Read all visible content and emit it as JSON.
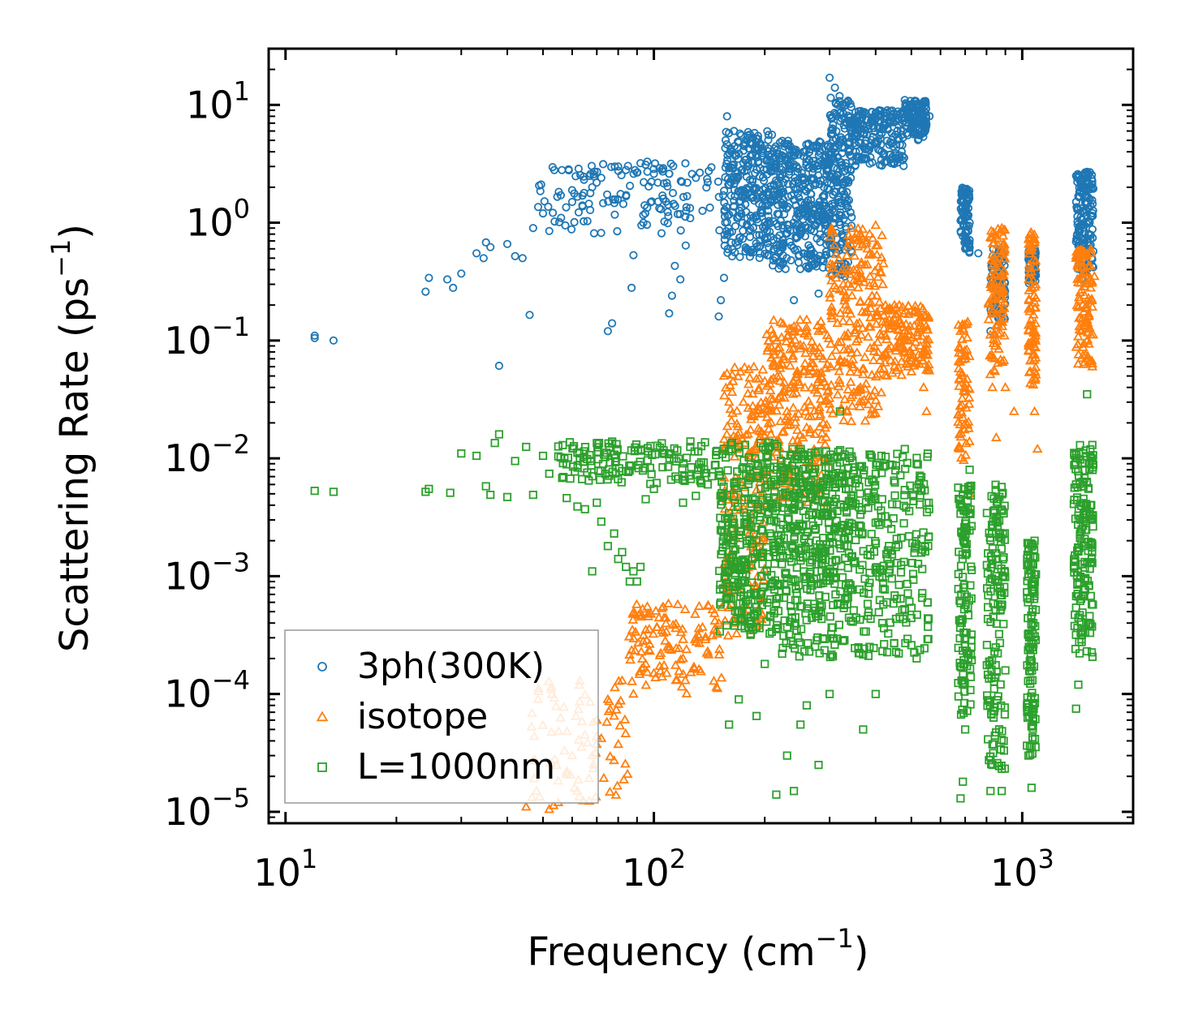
{
  "chart_data": {
    "type": "scatter",
    "title": "",
    "xlabel": {
      "text": "Frequency (cm",
      "sup": "−1",
      "close": ")"
    },
    "ylabel": {
      "text": "Scattering Rate (ps",
      "sup": "−1",
      "close": ")"
    },
    "xscale": "log",
    "yscale": "log",
    "xlim": [
      9.0,
      2000.0
    ],
    "ylim": [
      8e-06,
      30.0
    ],
    "xticks": [
      {
        "base": "10",
        "exp": "1",
        "value": 10
      },
      {
        "base": "10",
        "exp": "2",
        "value": 100
      },
      {
        "base": "10",
        "exp": "3",
        "value": 1000
      }
    ],
    "yticks": [
      {
        "base": "10",
        "exp": "−5",
        "value": 1e-05
      },
      {
        "base": "10",
        "exp": "−4",
        "value": 0.0001
      },
      {
        "base": "10",
        "exp": "−3",
        "value": 0.001
      },
      {
        "base": "10",
        "exp": "−2",
        "value": 0.01
      },
      {
        "base": "10",
        "exp": "−1",
        "value": 0.1
      },
      {
        "base": "10",
        "exp": "0",
        "value": 1
      },
      {
        "base": "10",
        "exp": "1",
        "value": 10
      }
    ],
    "legend_position": "lower-left",
    "series": [
      {
        "name": "3ph(300K)",
        "marker": "circle",
        "color": "#1f77b4",
        "points": [
          [
            12,
            0.11
          ],
          [
            12,
            0.105
          ],
          [
            13.5,
            0.1
          ],
          [
            24,
            0.26
          ],
          [
            24.5,
            0.34
          ],
          [
            27.5,
            0.33
          ],
          [
            28.5,
            0.28
          ],
          [
            30,
            0.37
          ],
          [
            33,
            0.55
          ],
          [
            34.5,
            0.5
          ],
          [
            35,
            0.68
          ],
          [
            36,
            0.62
          ],
          [
            38,
            0.061
          ],
          [
            40,
            0.66
          ],
          [
            42,
            0.52
          ],
          [
            44,
            0.5
          ],
          [
            46,
            0.165
          ],
          [
            47,
            0.9
          ],
          [
            50,
            1.2
          ],
          [
            52,
            0.85
          ],
          [
            56,
            1.1
          ],
          [
            60,
            1.5
          ],
          [
            64,
            1.7
          ],
          [
            68,
            2.0
          ],
          [
            72,
            2.4
          ],
          [
            75,
            0.12
          ],
          [
            77,
            0.14
          ],
          [
            80,
            3.0
          ],
          [
            84,
            2.8
          ],
          [
            87,
            0.28
          ],
          [
            88,
            0.53
          ],
          [
            92,
            3.2
          ],
          [
            96,
            3.3
          ],
          [
            100,
            2.6
          ],
          [
            106,
            2.9
          ],
          [
            110,
            0.17
          ],
          [
            112,
            0.24
          ],
          [
            114,
            0.43
          ],
          [
            118,
            0.33
          ],
          [
            122,
            0.64
          ],
          [
            130,
            2.4
          ],
          [
            140,
            2.2
          ],
          [
            150,
            0.16
          ],
          [
            152,
            0.22
          ],
          [
            155,
            0.34
          ],
          [
            158,
            8.0
          ],
          [
            165,
            6.0
          ],
          [
            180,
            5.5
          ],
          [
            200,
            4.5
          ],
          [
            220,
            4.8
          ],
          [
            240,
            0.22
          ],
          [
            260,
            3.5
          ],
          [
            280,
            0.25
          ],
          [
            300,
            17.0
          ],
          [
            310,
            14.0
          ],
          [
            330,
            0.35
          ],
          [
            350,
            5.5
          ],
          [
            380,
            7.5
          ],
          [
            420,
            8.5
          ],
          [
            480,
            11.0
          ],
          [
            520,
            10.0
          ],
          [
            560,
            8.0
          ],
          [
            690,
            1.8
          ],
          [
            700,
            0.6
          ],
          [
            720,
            1.0
          ],
          [
            760,
            0.55
          ],
          [
            820,
            0.12
          ],
          [
            850,
            0.45
          ],
          [
            880,
            0.55
          ],
          [
            1050,
            0.55
          ],
          [
            1080,
            0.38
          ],
          [
            1400,
            2.5
          ],
          [
            1450,
            0.33
          ],
          [
            1500,
            2.7
          ],
          [
            1550,
            0.43
          ]
        ],
        "bands": [
          {
            "x": [
              48,
              155
            ],
            "ylo": 0.8,
            "yhi": 3.2,
            "n": 140
          },
          {
            "x": [
              155,
              210
            ],
            "ylo": 0.5,
            "yhi": 6.0,
            "n": 280
          },
          {
            "x": [
              210,
              300
            ],
            "ylo": 0.4,
            "yhi": 5.0,
            "n": 380
          },
          {
            "x": [
              300,
              345
            ],
            "ylo": 0.35,
            "yhi": 12.0,
            "n": 200
          },
          {
            "x": [
              345,
              480
            ],
            "ylo": 3.0,
            "yhi": 9.0,
            "n": 200
          },
          {
            "x": [
              480,
              550
            ],
            "ylo": 5.0,
            "yhi": 11.0,
            "n": 120
          },
          {
            "x": [
              680,
              720
            ],
            "ylo": 0.55,
            "yhi": 2.0,
            "n": 90
          },
          {
            "x": [
              820,
              900
            ],
            "ylo": 0.15,
            "yhi": 0.6,
            "n": 90
          },
          {
            "x": [
              1040,
              1090
            ],
            "ylo": 0.3,
            "yhi": 0.6,
            "n": 70
          },
          {
            "x": [
              1400,
              1560
            ],
            "ylo": 0.35,
            "yhi": 2.7,
            "n": 160
          }
        ]
      },
      {
        "name": "isotope",
        "marker": "triangle",
        "color": "#ff7f0e",
        "points": [
          [
            45,
            1.1e-05
          ],
          [
            48,
            1.5e-05
          ],
          [
            52,
            1.05e-05
          ],
          [
            55,
            1.2e-05
          ],
          [
            58,
            2.2e-05
          ],
          [
            60,
            3e-05
          ],
          [
            62,
            1.5e-05
          ],
          [
            65,
            4.5e-05
          ],
          [
            68,
            3e-05
          ],
          [
            70,
            6e-05
          ],
          [
            72,
            4.2e-05
          ],
          [
            75,
            9e-05
          ],
          [
            78,
            6.5e-05
          ],
          [
            82,
            0.00013
          ],
          [
            88,
            0.0001
          ],
          [
            95,
            0.00018
          ],
          [
            100,
            0.00015
          ],
          [
            110,
            0.00024
          ],
          [
            120,
            0.0002
          ],
          [
            130,
            0.0003
          ],
          [
            140,
            0.00023
          ],
          [
            150,
            0.0004
          ],
          [
            155,
            0.05
          ],
          [
            160,
            0.03
          ],
          [
            175,
            0.03
          ],
          [
            190,
            0.012
          ],
          [
            220,
            0.05
          ],
          [
            235,
            0.04
          ],
          [
            260,
            0.15
          ],
          [
            280,
            0.12
          ],
          [
            300,
            0.25
          ],
          [
            340,
            0.4
          ],
          [
            380,
            0.6
          ],
          [
            400,
            0.95
          ],
          [
            420,
            0.45
          ],
          [
            450,
            0.2
          ],
          [
            480,
            0.12
          ],
          [
            520,
            0.11
          ],
          [
            540,
            0.04
          ],
          [
            550,
            0.025
          ],
          [
            680,
            0.12
          ],
          [
            700,
            0.04
          ],
          [
            720,
            0.005
          ],
          [
            820,
            0.3
          ],
          [
            830,
            0.04
          ],
          [
            850,
            0.015
          ],
          [
            880,
            0.9
          ],
          [
            900,
            0.04
          ],
          [
            950,
            0.025
          ],
          [
            1050,
            0.8
          ],
          [
            1080,
            0.025
          ],
          [
            1100,
            0.012
          ],
          [
            1400,
            0.5
          ],
          [
            1450,
            0.12
          ],
          [
            1500,
            0.15
          ],
          [
            1550,
            0.06
          ],
          [
            1570,
            0.35
          ]
        ],
        "bands": [
          {
            "x": [
              45,
              85
            ],
            "ylo": 1.1e-05,
            "yhi": 0.00013,
            "n": 80
          },
          {
            "x": [
              85,
              155
            ],
            "ylo": 0.0001,
            "yhi": 0.0006,
            "n": 120
          },
          {
            "x": [
              155,
              200
            ],
            "ylo": 0.0003,
            "yhi": 0.06,
            "n": 200
          },
          {
            "x": [
              200,
              300
            ],
            "ylo": 0.004,
            "yhi": 0.15,
            "n": 260
          },
          {
            "x": [
              300,
              420
            ],
            "ylo": 0.02,
            "yhi": 0.9,
            "n": 220
          },
          {
            "x": [
              420,
              560
            ],
            "ylo": 0.05,
            "yhi": 0.2,
            "n": 140
          },
          {
            "x": [
              670,
              720
            ],
            "ylo": 0.008,
            "yhi": 0.15,
            "n": 70
          },
          {
            "x": [
              810,
              900
            ],
            "ylo": 0.05,
            "yhi": 0.9,
            "n": 110
          },
          {
            "x": [
              1040,
              1090
            ],
            "ylo": 0.04,
            "yhi": 0.85,
            "n": 90
          },
          {
            "x": [
              1400,
              1560
            ],
            "ylo": 0.06,
            "yhi": 0.6,
            "n": 110
          }
        ]
      },
      {
        "name": "L=1000nm",
        "marker": "square",
        "color": "#2ca02c",
        "points": [
          [
            12,
            0.0053
          ],
          [
            13.5,
            0.0052
          ],
          [
            24,
            0.0052
          ],
          [
            24.5,
            0.0055
          ],
          [
            28,
            0.0051
          ],
          [
            30,
            0.011
          ],
          [
            33,
            0.0105
          ],
          [
            35,
            0.0058
          ],
          [
            36,
            0.0049
          ],
          [
            37,
            0.0135
          ],
          [
            38,
            0.016
          ],
          [
            40,
            0.0047
          ],
          [
            42,
            0.0095
          ],
          [
            45,
            0.0125
          ],
          [
            47,
            0.0049
          ],
          [
            50,
            0.0105
          ],
          [
            52,
            0.0074
          ],
          [
            55,
            0.0126
          ],
          [
            58,
            0.0046
          ],
          [
            62,
            0.0039
          ],
          [
            65,
            0.0037
          ],
          [
            68,
            0.0011
          ],
          [
            70,
            0.0042
          ],
          [
            72,
            0.0029
          ],
          [
            75,
            0.0018
          ],
          [
            78,
            0.0023
          ],
          [
            80,
            0.0014
          ],
          [
            82,
            0.0016
          ],
          [
            84,
            0.0012
          ],
          [
            86,
            0.0009
          ],
          [
            88,
            0.0011
          ],
          [
            90,
            0.0009
          ],
          [
            92,
            0.0012
          ],
          [
            95,
            0.0045
          ],
          [
            100,
            0.0055
          ],
          [
            110,
            0.011
          ],
          [
            120,
            0.0042
          ],
          [
            130,
            0.0048
          ],
          [
            140,
            0.006
          ],
          [
            160,
            5.5e-05
          ],
          [
            170,
            9e-05
          ],
          [
            190,
            6.5e-05
          ],
          [
            200,
            0.00018
          ],
          [
            215,
            1.4e-05
          ],
          [
            230,
            3e-05
          ],
          [
            240,
            1.5e-05
          ],
          [
            250,
            5.5e-05
          ],
          [
            260,
            8e-05
          ],
          [
            280,
            2.5e-05
          ],
          [
            300,
            0.0001
          ],
          [
            320,
            0.025
          ],
          [
            370,
            5e-05
          ],
          [
            400,
            0.0001
          ],
          [
            480,
            0.012
          ],
          [
            500,
            0.00026
          ],
          [
            680,
            1.3e-05
          ],
          [
            690,
            1.8e-05
          ],
          [
            700,
            5e-05
          ],
          [
            720,
            0.008
          ],
          [
            820,
            1.5e-05
          ],
          [
            830,
            2.5e-05
          ],
          [
            850,
            0.001
          ],
          [
            880,
            1.5e-05
          ],
          [
            1040,
            3e-05
          ],
          [
            1060,
            1.6e-05
          ],
          [
            1080,
            0.002
          ],
          [
            1400,
            7.5e-05
          ],
          [
            1420,
            0.00012
          ],
          [
            1450,
            0.0025
          ],
          [
            1500,
            0.035
          ],
          [
            1550,
            0.013
          ]
        ],
        "bands": [
          {
            "x": [
              55,
              150
            ],
            "ylo": 0.006,
            "yhi": 0.014,
            "n": 150
          },
          {
            "x": [
              150,
              220
            ],
            "ylo": 0.0003,
            "yhi": 0.014,
            "n": 320
          },
          {
            "x": [
              220,
              340
            ],
            "ylo": 0.0002,
            "yhi": 0.012,
            "n": 420
          },
          {
            "x": [
              340,
              560
            ],
            "ylo": 0.0002,
            "yhi": 0.011,
            "n": 260
          },
          {
            "x": [
              670,
              730
            ],
            "ylo": 6e-05,
            "yhi": 0.006,
            "n": 120
          },
          {
            "x": [
              800,
              900
            ],
            "ylo": 2e-05,
            "yhi": 0.006,
            "n": 150
          },
          {
            "x": [
              1030,
              1090
            ],
            "ylo": 3e-05,
            "yhi": 0.002,
            "n": 120
          },
          {
            "x": [
              1380,
              1560
            ],
            "ylo": 0.0002,
            "yhi": 0.015,
            "n": 170
          }
        ]
      }
    ]
  }
}
